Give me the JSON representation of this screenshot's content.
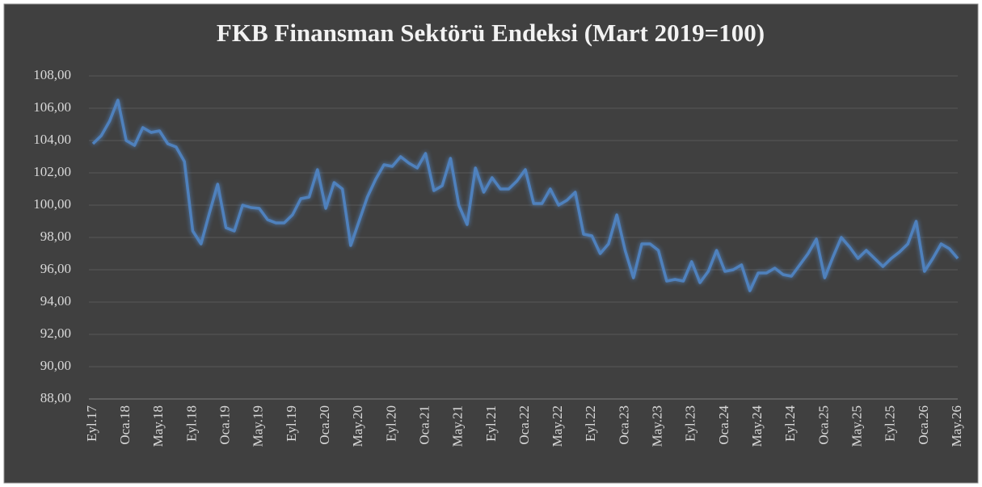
{
  "chart_data": {
    "type": "line",
    "title": "FKB Finansman Sektörü Endeksi (Mart 2019=100)",
    "categories": [
      "Eyl.17",
      null,
      null,
      null,
      "Oca.18",
      null,
      null,
      null,
      "May.18",
      null,
      null,
      null,
      "Eyl.18",
      null,
      null,
      null,
      "Oca.19",
      null,
      null,
      null,
      "May.19",
      null,
      null,
      null,
      "Eyl.19",
      null,
      null,
      null,
      "Oca.20",
      null,
      null,
      null,
      "May.20",
      null,
      null,
      null,
      "Eyl.20",
      null,
      null,
      null,
      "Oca.21",
      null,
      null,
      null,
      "May.21",
      null,
      null,
      null,
      "Eyl.21",
      null,
      null,
      null,
      "Oca.22",
      null,
      null,
      null,
      "May.22",
      null,
      null,
      null,
      "Eyl.22",
      null,
      null,
      null,
      "Oca.23",
      null,
      null,
      null,
      "May.23",
      null,
      null,
      null,
      "Eyl.23",
      null,
      null,
      null,
      "Oca.24",
      null,
      null,
      null,
      "May.24",
      null,
      null,
      null,
      "Eyl.24",
      null,
      null,
      null,
      "Oca.25",
      null,
      null,
      null,
      "May.25",
      null,
      null,
      null,
      "Eyl.25",
      null,
      null,
      null,
      "Oca.26",
      null,
      null,
      null,
      "May.26"
    ],
    "values": [
      103.8,
      104.3,
      105.2,
      106.5,
      104.0,
      103.7,
      104.8,
      104.5,
      104.6,
      103.8,
      103.6,
      102.7,
      98.4,
      97.6,
      99.5,
      101.3,
      98.6,
      98.4,
      100.0,
      99.85,
      99.8,
      99.1,
      98.9,
      98.9,
      99.4,
      100.4,
      100.5,
      102.2,
      99.8,
      101.4,
      101.0,
      97.5,
      99.0,
      100.5,
      101.6,
      102.5,
      102.4,
      103.0,
      102.6,
      102.3,
      103.2,
      100.9,
      101.2,
      102.9,
      100.0,
      98.8,
      102.3,
      100.8,
      101.7,
      101.0,
      101.0,
      101.5,
      102.2,
      100.1,
      100.1,
      101.0,
      100.0,
      100.3,
      100.8,
      98.2,
      98.1,
      97.0,
      97.6,
      99.4,
      97.2,
      95.5,
      97.6,
      97.6,
      97.2,
      95.3,
      95.4,
      95.3,
      96.5,
      95.2,
      95.9,
      97.2,
      95.9,
      96.0,
      96.3,
      94.7,
      95.8,
      95.8,
      96.1,
      95.7,
      95.6,
      96.3,
      97.0,
      97.9,
      95.5,
      96.8,
      98.0,
      97.4,
      96.7,
      97.2,
      96.7,
      96.2,
      96.7,
      97.1,
      97.6,
      99.0,
      95.9,
      96.7,
      97.6,
      97.3,
      96.7
    ],
    "color": "#4f81bd",
    "ylim": [
      88,
      108
    ],
    "yticks": [
      {
        "value": 88,
        "label": "88,00"
      },
      {
        "value": 90,
        "label": "90,00"
      },
      {
        "value": 92,
        "label": "92,00"
      },
      {
        "value": 94,
        "label": "94,00"
      },
      {
        "value": 96,
        "label": "96,00"
      },
      {
        "value": 98,
        "label": "98,00"
      },
      {
        "value": 100,
        "label": "100,00"
      },
      {
        "value": 102,
        "label": "102,00"
      },
      {
        "value": 104,
        "label": "104,00"
      },
      {
        "value": 106,
        "label": "106,00"
      },
      {
        "value": 108,
        "label": "108,00"
      }
    ],
    "grid": true
  }
}
